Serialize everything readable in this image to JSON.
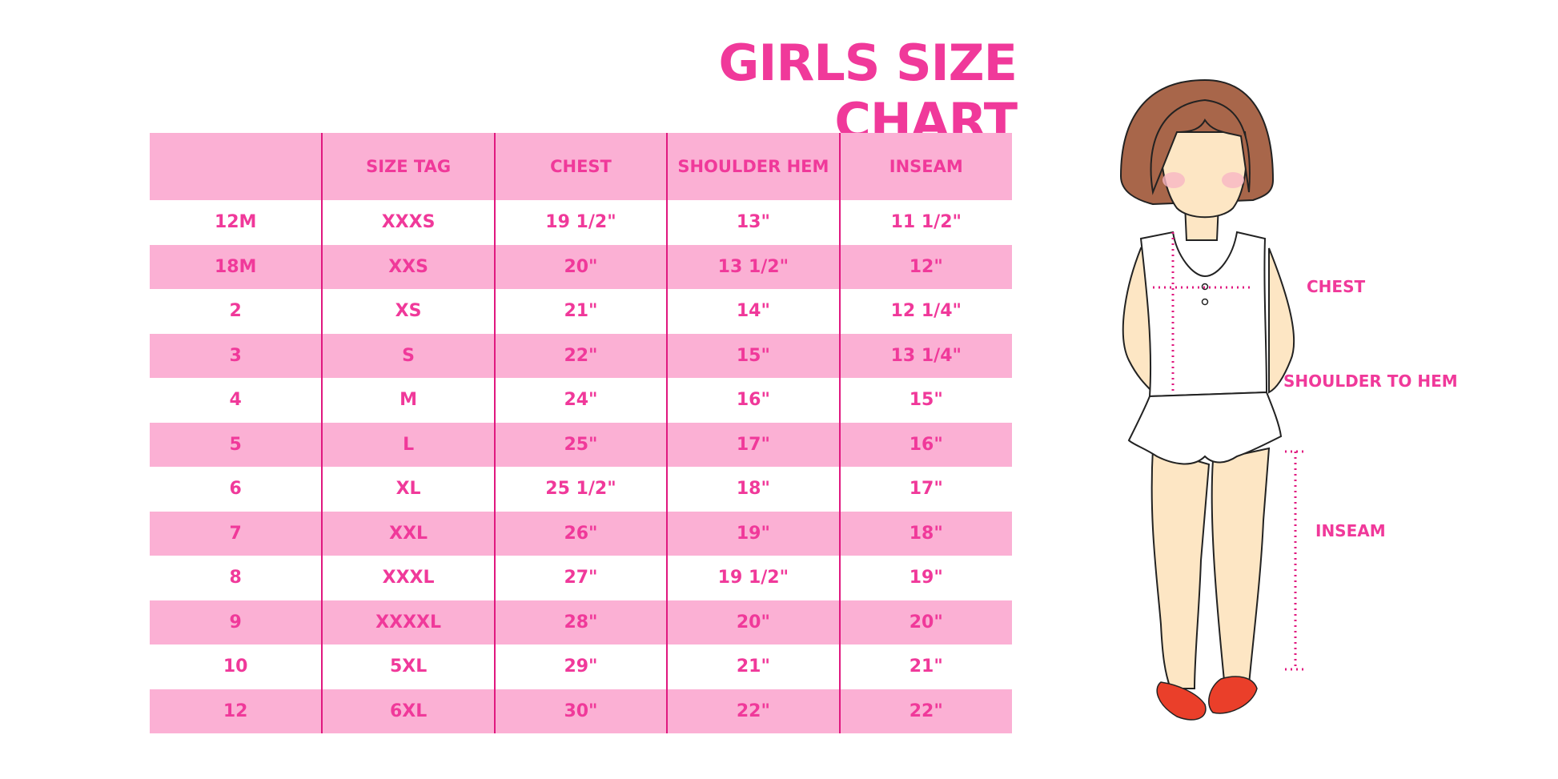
{
  "title": "GIRLS SIZE CHART",
  "table": {
    "headers": [
      "",
      "SIZE TAG",
      "CHEST",
      "SHOULDER HEM",
      "INSEAM"
    ],
    "rows": [
      [
        "12M",
        "XXXS",
        "19 1/2\"",
        "13\"",
        "11 1/2\""
      ],
      [
        "18M",
        "XXS",
        "20\"",
        "13 1/2\"",
        "12\""
      ],
      [
        "2",
        "XS",
        "21\"",
        "14\"",
        "12 1/4\""
      ],
      [
        "3",
        "S",
        "22\"",
        "15\"",
        "13 1/4\""
      ],
      [
        "4",
        "M",
        "24\"",
        "16\"",
        "15\""
      ],
      [
        "5",
        "L",
        "25\"",
        "17\"",
        "16\""
      ],
      [
        "6",
        "XL",
        "25 1/2\"",
        "18\"",
        "17\""
      ],
      [
        "7",
        "XXL",
        "26\"",
        "19\"",
        "18\""
      ],
      [
        "8",
        "XXXL",
        "27\"",
        "19 1/2\"",
        "19\""
      ],
      [
        "9",
        "XXXXL",
        "28\"",
        "20\"",
        "20\""
      ],
      [
        "10",
        "5XL",
        "29\"",
        "21\"",
        "21\""
      ],
      [
        "12",
        "6XL",
        "30\"",
        "22\"",
        "22\""
      ]
    ]
  },
  "figure": {
    "labels": {
      "chest": "CHEST",
      "shoulder_to_hem": "SHOULDER TO HEM",
      "inseam": "INSEAM"
    }
  },
  "colors": {
    "accent": "#f0399a",
    "stripe": "#fbb0d4",
    "divider": "#e0187f"
  }
}
